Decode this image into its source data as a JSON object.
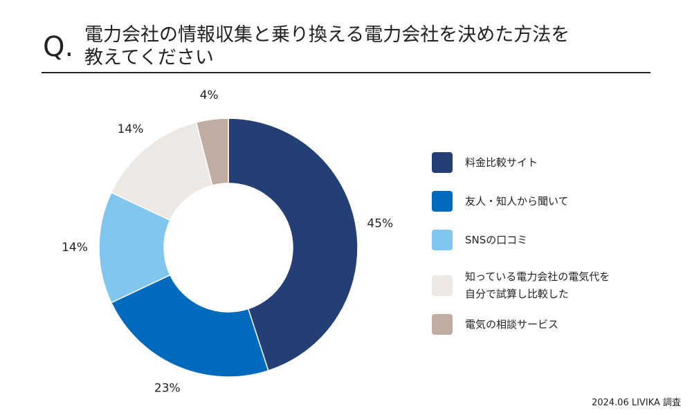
{
  "header": {
    "q_mark": "Q.",
    "title_lines": [
      "電力会社の情報収集と乗り換える電力会社を決めた方法を",
      "教えてください"
    ]
  },
  "chart_data": {
    "type": "pie",
    "donut": true,
    "title": "電力会社の情報収集と乗り換える電力会社を決めた方法を教えてください",
    "unit": "%",
    "slices": [
      {
        "label": "料金比較サイト",
        "value": 45,
        "value_label": "45%",
        "color": "#243F76"
      },
      {
        "label": "友人・知人から聞いて",
        "value": 23,
        "value_label": "23%",
        "color": "#006BBD"
      },
      {
        "label": "SNSの口コミ",
        "value": 14,
        "value_label": "14%",
        "color": "#80C6EE"
      },
      {
        "label": "知っている電力会社の電気代を自分で試算し比較した",
        "value": 14,
        "value_label": "14%",
        "color": "#EDE8E4",
        "label_lines": [
          "知っている電力会社の電気代を",
          "自分で試算し比較した"
        ]
      },
      {
        "label": "電気の相談サービス",
        "value": 4,
        "value_label": "4%",
        "color": "#C0ACA2"
      }
    ],
    "legend_position": "right"
  },
  "footer": {
    "source": "2024.06 LIVIKA 調査"
  }
}
